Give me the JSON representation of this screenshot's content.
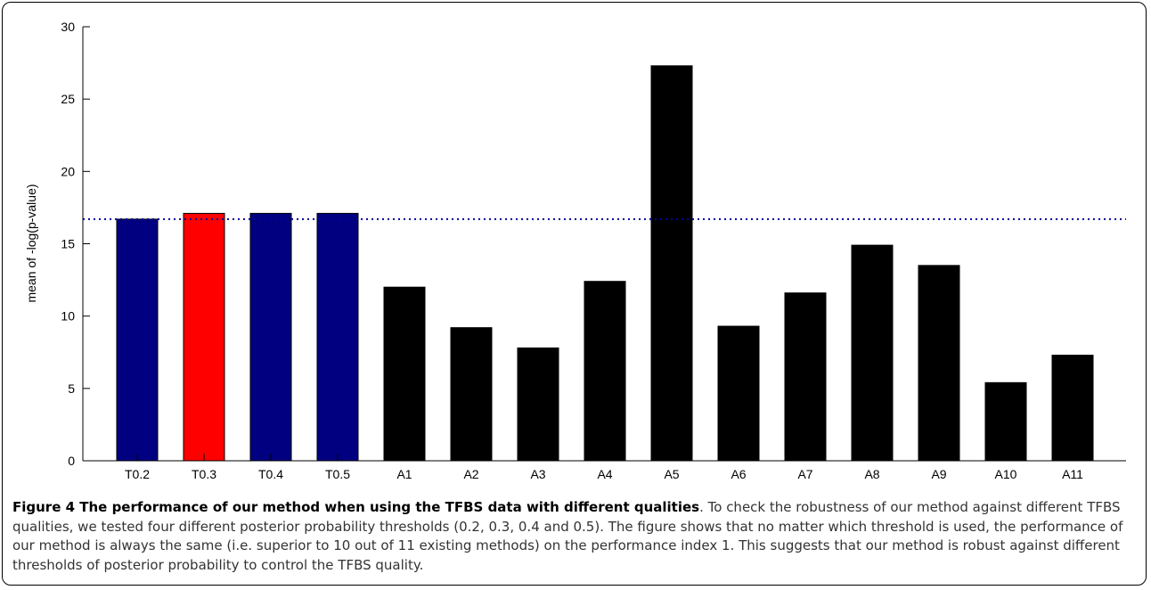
{
  "chart_data": {
    "type": "bar",
    "categories": [
      "T0.2",
      "T0.3",
      "T0.4",
      "T0.5",
      "A1",
      "A2",
      "A3",
      "A4",
      "A5",
      "A6",
      "A7",
      "A8",
      "A9",
      "A10",
      "A11"
    ],
    "values": [
      16.7,
      17.1,
      17.1,
      17.1,
      12.0,
      9.2,
      7.8,
      12.4,
      27.3,
      9.3,
      11.6,
      14.9,
      13.5,
      5.4,
      7.3
    ],
    "colors": [
      "#000080",
      "#ff0000",
      "#000080",
      "#000080",
      "#000000",
      "#000000",
      "#000000",
      "#000000",
      "#000000",
      "#000000",
      "#000000",
      "#000000",
      "#000000",
      "#000000",
      "#000000"
    ],
    "reference_line": {
      "y": 16.7,
      "style": "dotted",
      "color": "#0000a0"
    },
    "ylabel": "mean of -log(p-value)",
    "xlabel": "",
    "ylim": [
      0,
      30
    ],
    "yticks": [
      "0",
      "5",
      "10",
      "15",
      "20",
      "25",
      "30"
    ],
    "grid": false,
    "legend": "none"
  },
  "caption": {
    "bold": "Figure 4 The performance of our method when using the TFBS data with different qualities",
    "text": ". To check the robustness of our method against different TFBS qualities, we tested four different posterior probability thresholds (0.2, 0.3, 0.4 and 0.5). The figure shows that no matter which threshold is used, the performance of our method is always the same (i.e. superior to 10 out of 11 existing methods) on the performance index 1. This suggests that our method is robust against different thresholds of posterior probability to control the TFBS quality."
  }
}
